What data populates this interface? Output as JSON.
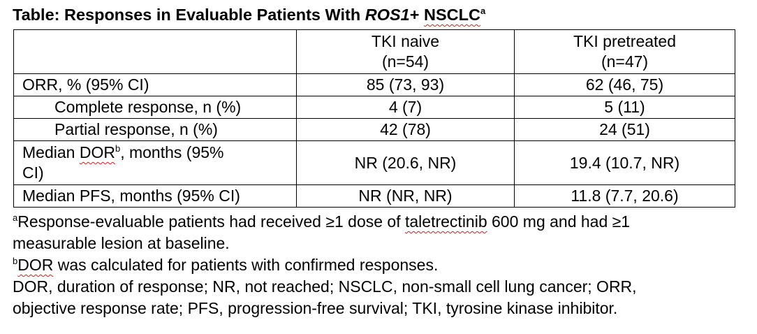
{
  "title": {
    "prefix": "Table: Responses in Evaluable Patients With ",
    "gene": "ROS1",
    "suffix": "+ ",
    "disease": "NSCLC",
    "footnote_mark": "a"
  },
  "table": {
    "headers": [
      {
        "line1": "",
        "line2": ""
      },
      {
        "line1": "TKI naive",
        "line2": "(n=54)"
      },
      {
        "line1": "TKI pretreated",
        "line2": "(n=47)"
      }
    ],
    "rows": [
      {
        "label": "ORR, % (95% CI)",
        "naive": "85 (73, 93)",
        "pretreated": "62 (46, 75)"
      },
      {
        "label": "Complete response, n (%)",
        "naive": "4 (7)",
        "pretreated": "5 (11)"
      },
      {
        "label": "Partial response, n (%)",
        "naive": "42 (78)",
        "pretreated": "24 (51)"
      },
      {
        "label_pre": "Median ",
        "label_sq": "DOR",
        "label_sup": "b",
        "label_post": ", months (95%",
        "label_line2": "CI)",
        "naive": "NR (20.6, NR)",
        "pretreated": "19.4 (10.7, NR)"
      },
      {
        "label": "Median PFS, months (95% CI)",
        "naive": "NR (NR, NR)",
        "pretreated": "11.8 (7.7, 20.6)"
      }
    ]
  },
  "footnotes": [
    {
      "mark": "a",
      "pre": "Response-evaluable patients had received ≥1 dose of ",
      "sq": "taletrectinib",
      "post": " 600 mg and had ≥1",
      "line2": "measurable lesion at baseline."
    },
    {
      "mark": "b",
      "sq": "DOR",
      "post": " was calculated for patients with confirmed responses."
    },
    {
      "line1": "DOR, duration of response; NR, not reached; NSCLC, non-small cell lung cancer; ORR,",
      "line2": "objective response rate; PFS, progression-free survival; TKI, tyrosine kinase inhibitor."
    }
  ]
}
